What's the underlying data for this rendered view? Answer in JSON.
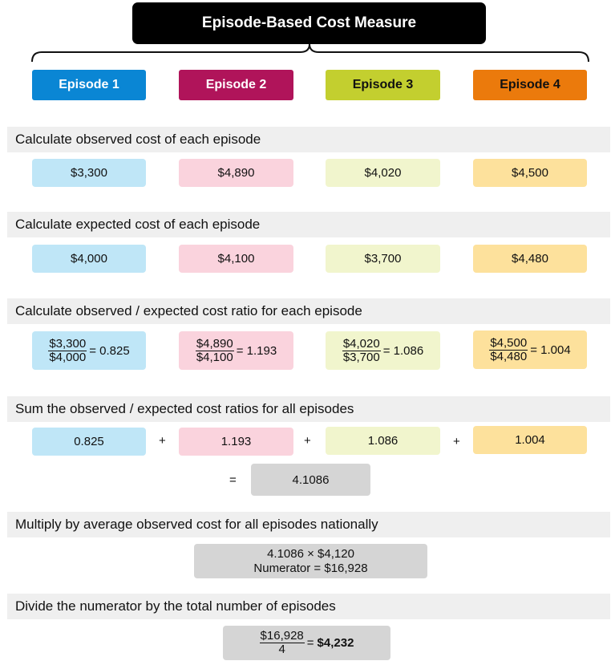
{
  "title": "Episode-Based Cost Measure",
  "episodes": [
    {
      "label": "Episode 1",
      "color": "#0a86d4",
      "text_color": "#ffffff"
    },
    {
      "label": "Episode 2",
      "color": "#b0145a",
      "text_color": "#ffffff"
    },
    {
      "label": "Episode 3",
      "color": "#c3cf2f",
      "text_color": "#111111"
    },
    {
      "label": "Episode 4",
      "color": "#eb7a0c",
      "text_color": "#111111"
    }
  ],
  "steps": {
    "observed": {
      "label": "Calculate observed cost of each episode",
      "values": [
        "$3,300",
        "$4,890",
        "$4,020",
        "$4,500"
      ]
    },
    "expected": {
      "label": "Calculate expected cost of each episode",
      "values": [
        "$4,000",
        "$4,100",
        "$3,700",
        "$4,480"
      ]
    },
    "ratio": {
      "label": "Calculate observed / expected cost ratio for each episode",
      "items": [
        {
          "num": "$3,300",
          "den": "$4,000",
          "result": "= 0.825"
        },
        {
          "num": "$4,890",
          "den": "$4,100",
          "result": "= 1.193"
        },
        {
          "num": "$4,020",
          "den": "$3,700",
          "result": "= 1.086"
        },
        {
          "num": "$4,500",
          "den": "$4,480",
          "result": "= 1.004"
        }
      ]
    },
    "sum": {
      "label": "Sum the observed / expected cost ratios for all episodes",
      "values": [
        "0.825",
        "1.193",
        "1.086",
        "1.004"
      ],
      "plus": "+",
      "equals": "=",
      "total": "4.1086"
    },
    "multiply": {
      "label": "Multiply by average observed cost for all episodes nationally",
      "line1": "4.1086 × $4,120",
      "line2": "Numerator = $16,928"
    },
    "divide": {
      "label": "Divide the numerator by the total number of episodes",
      "num": "$16,928",
      "den": "4",
      "equals": "=",
      "result": "$4,232"
    }
  }
}
